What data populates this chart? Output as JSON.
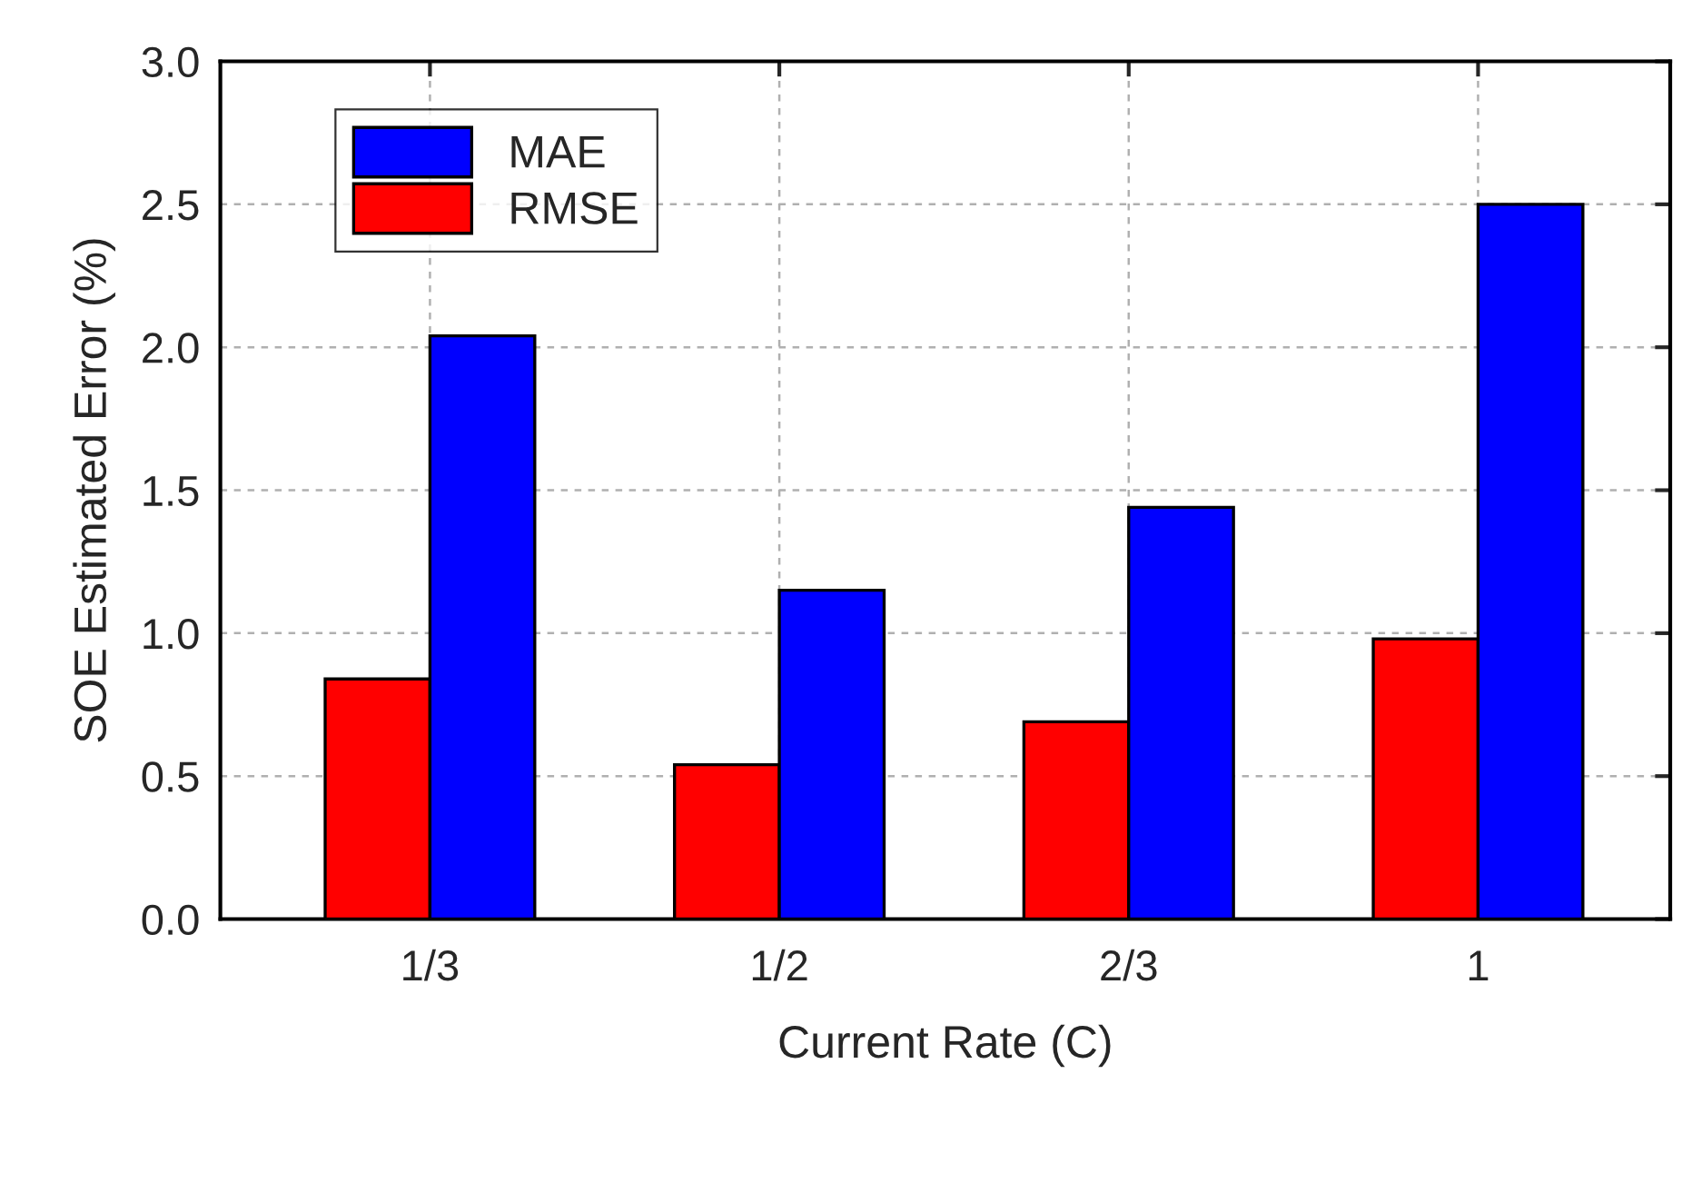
{
  "chart_data": {
    "type": "bar",
    "xlabel": "Current Rate (C)",
    "ylabel": "SOE Estimated Error (%)",
    "categories": [
      "1/3",
      "1/2",
      "2/3",
      "1"
    ],
    "series": [
      {
        "name": "RMSE",
        "color": "#ff0000",
        "values": [
          0.84,
          0.54,
          0.69,
          0.98
        ]
      },
      {
        "name": "MAE",
        "color": "#0000ff",
        "values": [
          2.04,
          1.15,
          1.44,
          2.5
        ]
      }
    ],
    "ylim": [
      0,
      3.0
    ],
    "yticks": [
      {
        "value": 0,
        "label": "0.0"
      },
      {
        "value": 0.5,
        "label": "0.5"
      },
      {
        "value": 1.0,
        "label": "1.0"
      },
      {
        "value": 1.5,
        "label": "1.5"
      },
      {
        "value": 2.0,
        "label": "2.0"
      },
      {
        "value": 2.5,
        "label": "2.5"
      },
      {
        "value": 3.0,
        "label": "3.0"
      }
    ],
    "grid": true,
    "legend": "top left"
  }
}
